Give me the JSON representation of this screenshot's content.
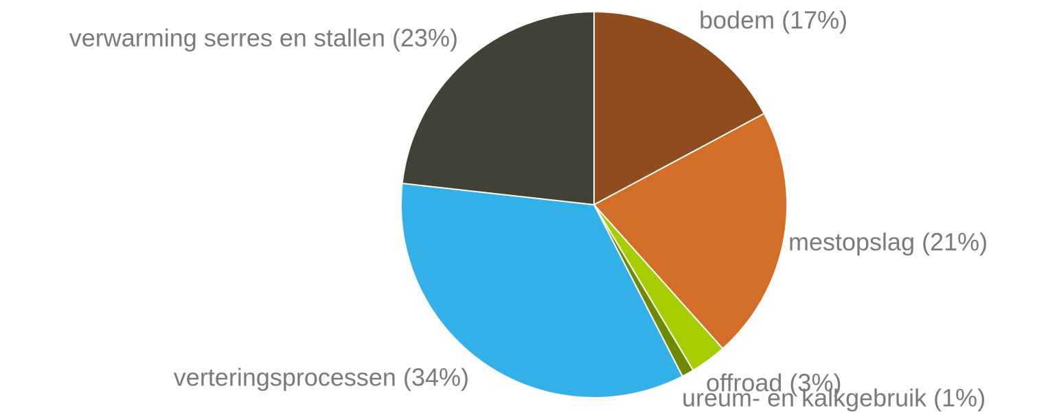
{
  "chart_data": {
    "type": "pie",
    "value_labels": [
      "bodem (17%)",
      "mestopslag (21%)",
      "offroad (3%)",
      "ureum- en kalkgebruik (1%)",
      "verteringsprocessen (34%)",
      "verwarming serres en stallen (23%)"
    ],
    "values": [
      17,
      21,
      3,
      1,
      34,
      23
    ],
    "colors": [
      "#8f4c1d",
      "#d26e27",
      "#a5cd00",
      "#6e8a00",
      "#33b0e8",
      "#414135"
    ]
  }
}
